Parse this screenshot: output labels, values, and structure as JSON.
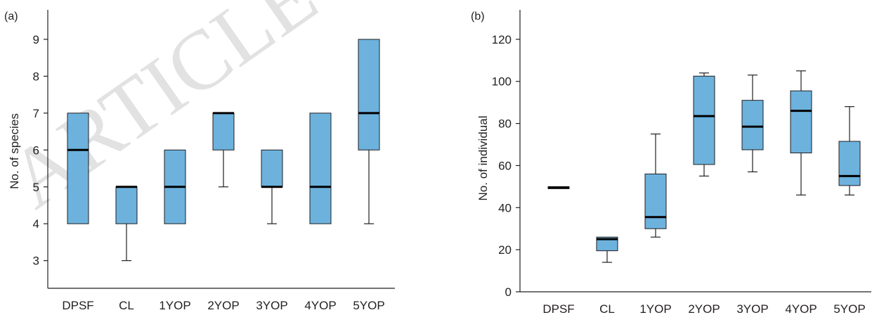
{
  "colors": {
    "box_fill": "#6cb2dd",
    "stroke": "#231f20",
    "watermark": "#c8c8c8"
  },
  "watermark_text": "ARTICLE",
  "chart_data": [
    {
      "type": "box",
      "panel_label": "(a)",
      "ylabel": "No. of species",
      "xlabel": "",
      "categories": [
        "DPSF",
        "CL",
        "1YOP",
        "2YOP",
        "3YOP",
        "4YOP",
        "5YOP"
      ],
      "ylim": [
        2.25,
        9.8
      ],
      "yticks": [
        "3",
        "4",
        "5",
        "6",
        "7",
        "8",
        "9"
      ],
      "boxes": [
        {
          "min": 4,
          "q1": 4,
          "median": 6,
          "q3": 7,
          "max": 7
        },
        {
          "min": 3,
          "q1": 4,
          "median": 5,
          "q3": 5,
          "max": 5
        },
        {
          "min": 4,
          "q1": 4,
          "median": 5,
          "q3": 6,
          "max": 6
        },
        {
          "min": 5,
          "q1": 6,
          "median": 7,
          "q3": 7,
          "max": 7
        },
        {
          "min": 4,
          "q1": 5,
          "median": 5,
          "q3": 6,
          "max": 6
        },
        {
          "min": 4,
          "q1": 4,
          "median": 5,
          "q3": 7,
          "max": 7
        },
        {
          "min": 4,
          "q1": 6,
          "median": 7,
          "q3": 9,
          "max": 9
        }
      ]
    },
    {
      "type": "box",
      "panel_label": "(b)",
      "ylabel": "No. of individual",
      "xlabel": "",
      "categories": [
        "DPSF",
        "CL",
        "1YOP",
        "2YOP",
        "3YOP",
        "4YOP",
        "5YOP"
      ],
      "ylim": [
        0,
        134
      ],
      "yticks": [
        "0",
        "20",
        "40",
        "60",
        "80",
        "100",
        "120"
      ],
      "boxes": [
        {
          "min": 49,
          "q1": 49,
          "median": 49.5,
          "q3": 50,
          "max": 50
        },
        {
          "min": 14,
          "q1": 19.5,
          "median": 25,
          "q3": 26,
          "max": 26
        },
        {
          "min": 26,
          "q1": 30,
          "median": 35.5,
          "q3": 56,
          "max": 75
        },
        {
          "min": 55,
          "q1": 60.5,
          "median": 83.5,
          "q3": 102.5,
          "max": 104
        },
        {
          "min": 57,
          "q1": 67.5,
          "median": 78.5,
          "q3": 91,
          "max": 103
        },
        {
          "min": 46,
          "q1": 66,
          "median": 86,
          "q3": 95.5,
          "max": 105
        },
        {
          "min": 46,
          "q1": 50.5,
          "median": 55,
          "q3": 71.5,
          "max": 88
        }
      ]
    }
  ]
}
